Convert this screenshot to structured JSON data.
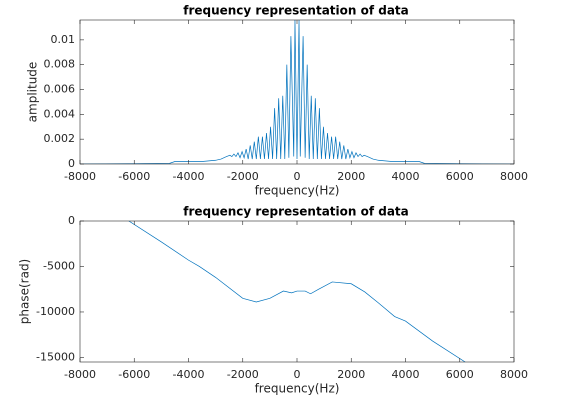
{
  "chart_data": [
    {
      "type": "line",
      "title": "frequency representation of data",
      "xlabel": "frequency(Hz)",
      "ylabel": "amplitude",
      "color": "#0072bd",
      "xlim": [
        -8000,
        8000
      ],
      "xticks": [
        -8000,
        -6000,
        -4000,
        -2000,
        0,
        2000,
        4000,
        6000,
        8000
      ],
      "ylim": [
        0,
        0.0116
      ],
      "yticks": [
        0,
        0.002,
        0.004,
        0.006,
        0.008,
        0.01
      ],
      "x": [
        -8000,
        -6000,
        -4700,
        -4500,
        -4000,
        -3500,
        -3000,
        -2800,
        -2600,
        -2475,
        -2400,
        -2325,
        -2250,
        -2175,
        -2100,
        -2025,
        -1950,
        -1875,
        -1800,
        -1725,
        -1650,
        -1575,
        -1500,
        -1425,
        -1350,
        -1275,
        -1200,
        -1125,
        -1050,
        -975,
        -900,
        -825,
        -750,
        -675,
        -600,
        -525,
        -450,
        -375,
        -300,
        -225,
        -120,
        -75,
        0,
        75,
        120,
        225,
        300,
        375,
        450,
        525,
        600,
        675,
        750,
        825,
        900,
        975,
        1050,
        1125,
        1200,
        1275,
        1350,
        1425,
        1500,
        1575,
        1650,
        1725,
        1800,
        1875,
        1950,
        2025,
        2100,
        2175,
        2250,
        2325,
        2400,
        2475,
        2600,
        2800,
        3000,
        3500,
        4000,
        4500,
        4700,
        6000,
        8000
      ],
      "values": [
        0,
        2e-05,
        5e-05,
        0.0002,
        0.0002,
        0.0002,
        0.0003,
        0.0004,
        0.0006,
        0.0007,
        0.0006,
        0.0008,
        0.0006,
        0.0009,
        0.0005,
        0.001,
        0.0005,
        0.0012,
        0.0004,
        0.0015,
        0.0004,
        0.0018,
        0.0004,
        0.0022,
        0.0004,
        0.0022,
        0.0004,
        0.0025,
        0.0004,
        0.003,
        0.0004,
        0.0045,
        0.0004,
        0.0053,
        0.0004,
        0.0055,
        0.0004,
        0.008,
        0.0005,
        0.0103,
        0.0006,
        0.0116,
        0.0004,
        0.0116,
        0.0006,
        0.0103,
        0.0005,
        0.008,
        0.0004,
        0.0055,
        0.0004,
        0.0053,
        0.0004,
        0.0045,
        0.0004,
        0.003,
        0.0004,
        0.0025,
        0.0004,
        0.0022,
        0.0004,
        0.0022,
        0.0004,
        0.0018,
        0.0004,
        0.0015,
        0.0004,
        0.0012,
        0.0005,
        0.001,
        0.0005,
        0.0009,
        0.0006,
        0.0008,
        0.0006,
        0.0007,
        0.0006,
        0.0004,
        0.0003,
        0.0002,
        0.0002,
        0.0002,
        5e-05,
        2e-05,
        0
      ]
    },
    {
      "type": "line",
      "title": "frequency representation of data",
      "xlabel": "frequency(Hz)",
      "ylabel": "phase(rad)",
      "color": "#0072bd",
      "xlim": [
        -8000,
        8000
      ],
      "xticks": [
        -8000,
        -6000,
        -4000,
        -2000,
        0,
        2000,
        4000,
        6000,
        8000
      ],
      "ylim": [
        -15500,
        0
      ],
      "yticks": [
        -15000,
        -10000,
        -5000,
        0
      ],
      "x": [
        -6200,
        -5000,
        -4000,
        -3600,
        -3000,
        -2000,
        -1500,
        -1000,
        -500,
        -200,
        0,
        300,
        500,
        800,
        1300,
        2000,
        2500,
        3000,
        3600,
        4000,
        5000,
        6200
      ],
      "values": [
        0,
        -2300,
        -4300,
        -5000,
        -6200,
        -8500,
        -8900,
        -8500,
        -7700,
        -7900,
        -7700,
        -7700,
        -8000,
        -7500,
        -6700,
        -6900,
        -7800,
        -9000,
        -10500,
        -11000,
        -13200,
        -15500
      ]
    }
  ]
}
